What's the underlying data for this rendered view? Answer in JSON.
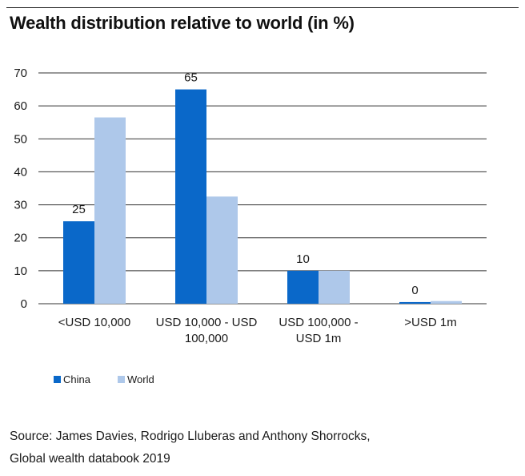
{
  "title": "Wealth distribution relative to world (in %)",
  "source": {
    "line1": "Source: James Davies, Rodrigo Lluberas and Anthony Shorrocks,",
    "line2": "Global wealth databook 2019"
  },
  "colors": {
    "china": "#0a68c9",
    "world": "#aec8ea",
    "grid": "#333333",
    "text": "#1a1a1a"
  },
  "legend": {
    "china": "China",
    "world": "World"
  },
  "chart_data": {
    "type": "bar",
    "title": "Wealth distribution relative to world (in %)",
    "xlabel": "",
    "ylabel": "",
    "ylim": [
      0,
      70
    ],
    "yticks": [
      0,
      10,
      20,
      30,
      40,
      50,
      60,
      70
    ],
    "grid": true,
    "legend_position": "bottom-left",
    "categories": [
      [
        "<USD 10,000"
      ],
      [
        "USD 10,000 - USD",
        "100,000"
      ],
      [
        "USD 100,000 -",
        "USD 1m"
      ],
      [
        ">USD 1m"
      ]
    ],
    "series": [
      {
        "name": "China",
        "values": [
          25,
          65,
          10,
          0.5
        ],
        "data_labels": [
          "25",
          "65",
          "10",
          "0"
        ]
      },
      {
        "name": "World",
        "values": [
          56.5,
          32.5,
          10,
          0.8
        ],
        "data_labels": [
          "",
          "",
          "",
          ""
        ]
      }
    ]
  }
}
